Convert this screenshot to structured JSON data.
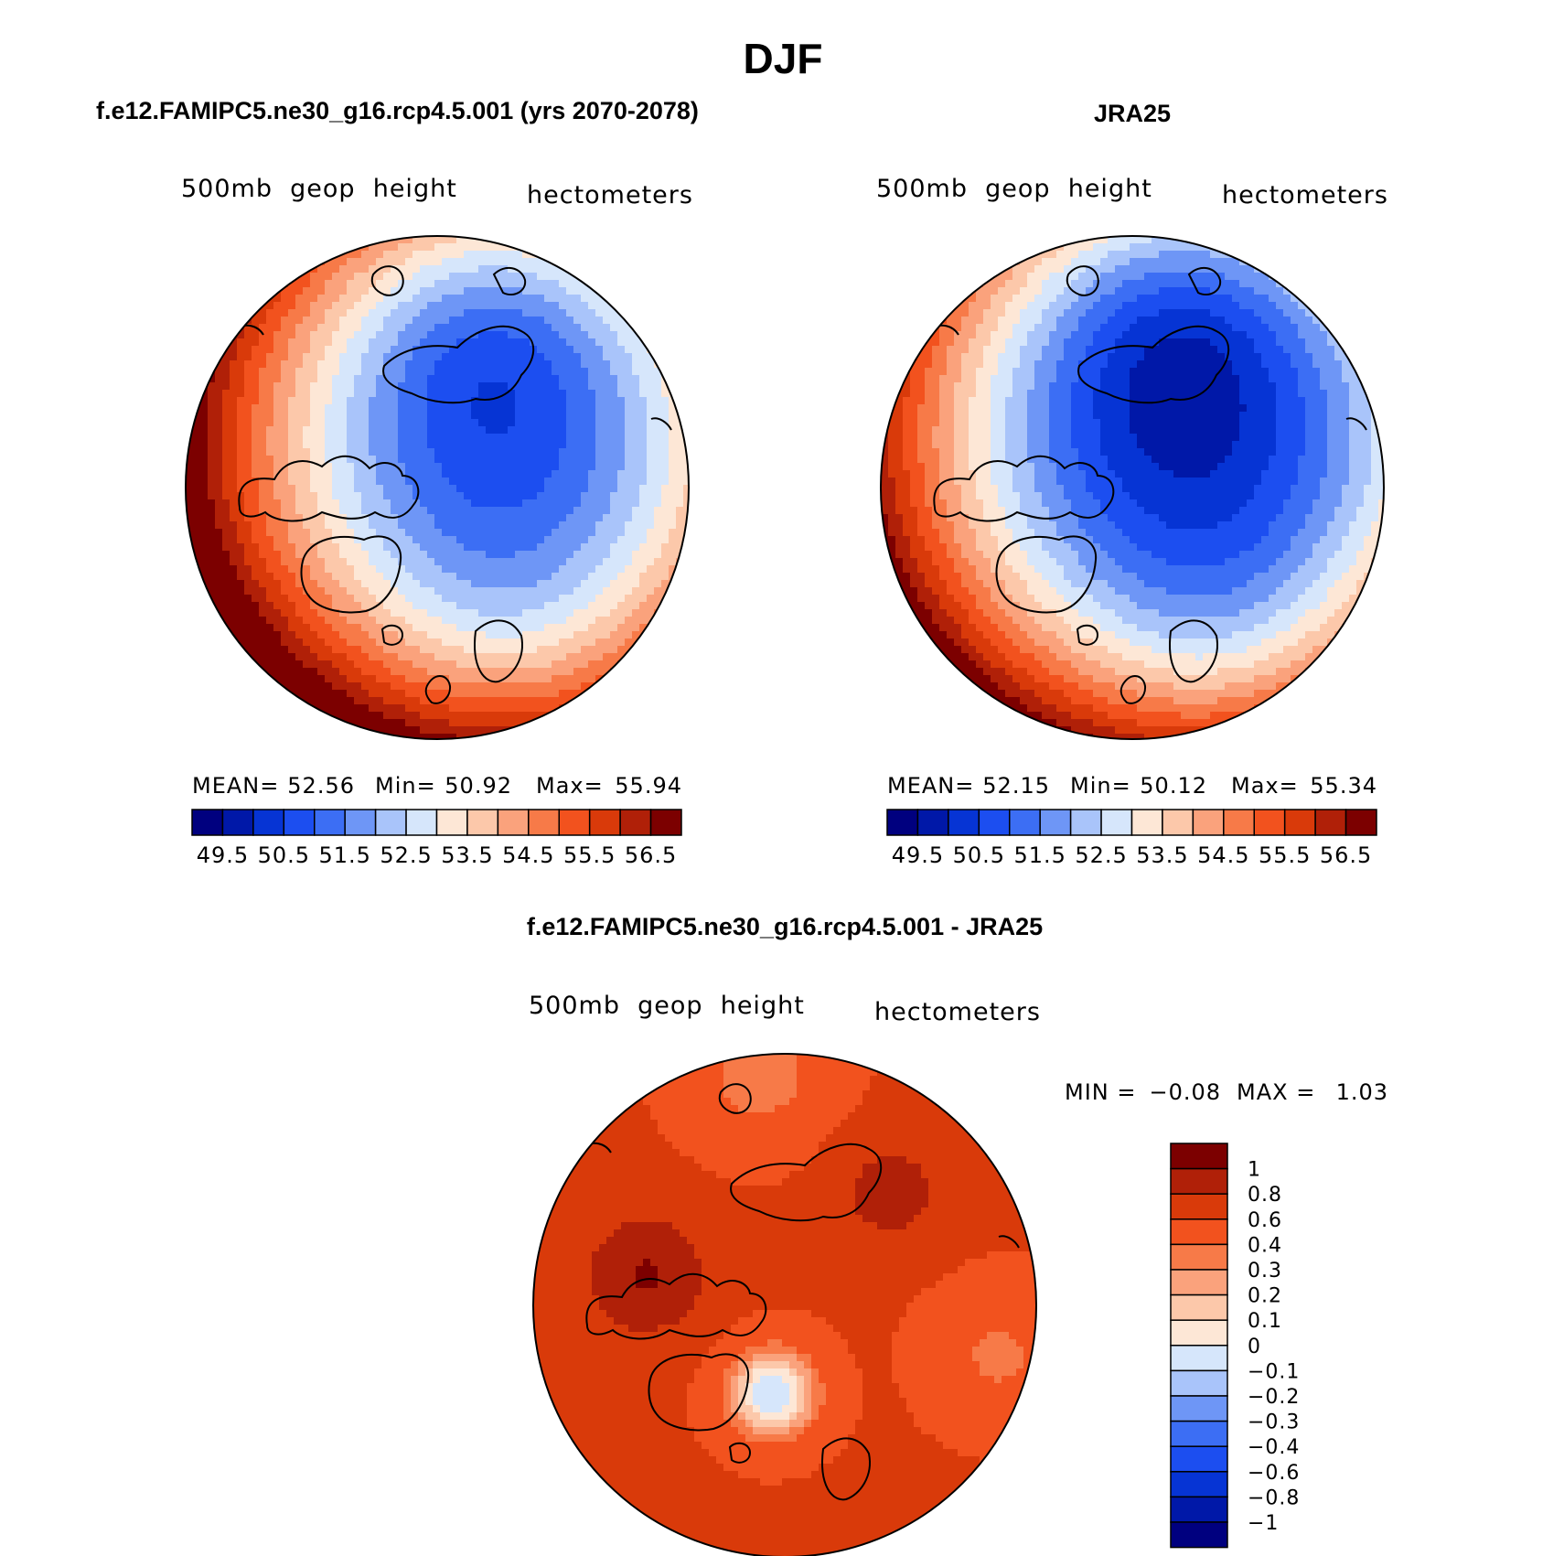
{
  "chart_data": {
    "type": "contour-map",
    "title": "DJF",
    "panels": [
      {
        "id": "model",
        "title": "f.e12.FAMIPC5.ne30_g16.rcp4.5.001 (yrs 2070-2078)",
        "variable": "500mb  geop  height",
        "units": "hectometers",
        "stats_labels": [
          "MEAN=",
          "Min=",
          "Max="
        ],
        "stats": [
          "52.56",
          "50.92",
          "55.94"
        ],
        "levels": [
          49.5,
          50,
          50.5,
          51,
          51.5,
          52,
          52.5,
          53,
          53.5,
          54,
          54.5,
          55,
          55.5,
          56,
          56.5
        ],
        "tick_labels": [
          "49.5",
          "50.5",
          "51.5",
          "52.5",
          "53.5",
          "54.5",
          "55.5",
          "56.5"
        ],
        "field": {
          "pole": 51.05,
          "pole_bearing": -0.5,
          "lobes": [
            {
              "bearing": -1.25,
              "amp": 0.9
            },
            {
              "bearing": 1.1,
              "amp": 0.55
            }
          ]
        }
      },
      {
        "id": "obs",
        "title": "JRA25",
        "variable": "500mb  geop  height",
        "units": "hectometers",
        "stats_labels": [
          "MEAN=",
          "Min=",
          "Max="
        ],
        "stats": [
          "52.15",
          "50.12",
          "55.34"
        ],
        "levels": [
          49.5,
          50,
          50.5,
          51,
          51.5,
          52,
          52.5,
          53,
          53.5,
          54,
          54.5,
          55,
          55.5,
          56,
          56.5
        ],
        "tick_labels": [
          "49.5",
          "50.5",
          "51.5",
          "52.5",
          "53.5",
          "54.5",
          "55.5",
          "56.5"
        ],
        "field": {
          "pole": 50.3,
          "pole_bearing": -0.6,
          "lobes": [
            {
              "bearing": -1.3,
              "amp": 1.0
            },
            {
              "bearing": 1.05,
              "amp": 0.55
            }
          ]
        }
      },
      {
        "id": "diff",
        "title": "f.e12.FAMIPC5.ne30_g16.rcp4.5.001 - JRA25",
        "variable": "500mb  geop  height",
        "units": "hectometers",
        "stats_labels": [
          "MIN =",
          "MAX ="
        ],
        "stats": [
          "−0.08",
          "1.03"
        ],
        "levels": [
          -1,
          -0.8,
          -0.6,
          -0.4,
          -0.3,
          -0.2,
          -0.1,
          0,
          0.1,
          0.2,
          0.3,
          0.4,
          0.6,
          0.8,
          1
        ],
        "tick_labels": [
          "1",
          "0.8",
          "0.6",
          "0.4",
          "0.3",
          "0.2",
          "0.1",
          "0",
          "−0.1",
          "−0.2",
          "−0.3",
          "−0.4",
          "−0.6",
          "−0.8",
          "−1"
        ]
      }
    ],
    "colors": [
      "#00007f",
      "#0018a8",
      "#0634d4",
      "#1c4ef0",
      "#3c6ef4",
      "#6e96f6",
      "#a9c4fa",
      "#d6e6fb",
      "#fde7d6",
      "#fcc8aa",
      "#faa27c",
      "#f77a48",
      "#f2521e",
      "#d93a0a",
      "#b02008",
      "#7c0000"
    ]
  }
}
